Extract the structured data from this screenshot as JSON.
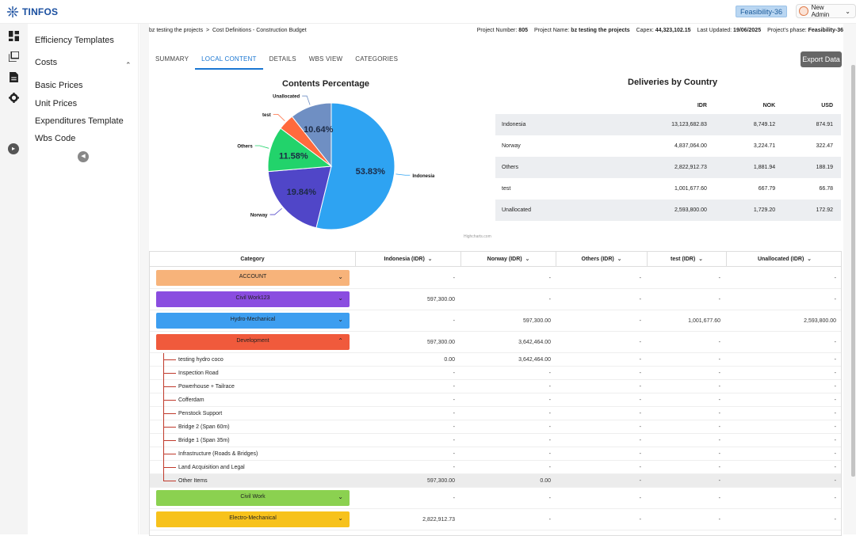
{
  "app": {
    "name": "TINFOS"
  },
  "header": {
    "phase_badge": "Feasibility-36",
    "user": "New Admin"
  },
  "sidemenu": {
    "items": [
      {
        "label": "Efficiency Templates"
      },
      {
        "label": "Costs"
      },
      {
        "label": "Basic Prices"
      },
      {
        "label": "Unit Prices"
      },
      {
        "label": "Expenditures Template"
      },
      {
        "label": "Wbs Code"
      }
    ]
  },
  "breadcrumb": {
    "project": "bz testing the projects",
    "sep": ">",
    "page": "Cost Definitions - Construction Budget"
  },
  "meta": {
    "project_number_label": "Project Number:",
    "project_number": "805",
    "project_name_label": "Project Name:",
    "project_name": "bz testing the projects",
    "capex_label": "Capex:",
    "capex": "44,323,102.15",
    "updated_label": "Last Updated:",
    "updated": "19/06/2025",
    "phase_label": "Project's phase:",
    "phase": "Feasibility-36"
  },
  "tabs": [
    "SUMMARY",
    "LOCAL CONTENT",
    "DETAILS",
    "WBS VIEW",
    "CATEGORIES"
  ],
  "export_label": "Export Data",
  "chart_data": {
    "type": "pie",
    "title": "Contents Percentage",
    "credit": "Highcharts.com",
    "slices": [
      {
        "name": "Indonesia",
        "value": 53.83,
        "label": "53.83%",
        "color": "#2ea3f2"
      },
      {
        "name": "Norway",
        "value": 19.84,
        "label": "19.84%",
        "color": "#5046c8"
      },
      {
        "name": "Others",
        "value": 11.58,
        "label": "11.58%",
        "color": "#22d36b"
      },
      {
        "name": "test",
        "value": 4.11,
        "label": "",
        "color": "#ff6a3d"
      },
      {
        "name": "Unallocated",
        "value": 10.64,
        "label": "10.64%",
        "color": "#6f8fc3"
      }
    ]
  },
  "deliveries": {
    "title": "Deliveries by Country",
    "columns": [
      "IDR",
      "NOK",
      "USD"
    ],
    "rows": [
      {
        "name": "Indonesia",
        "idr": "13,123,682.83",
        "nok": "8,749.12",
        "usd": "874.91"
      },
      {
        "name": "Norway",
        "idr": "4,837,064.00",
        "nok": "3,224.71",
        "usd": "322.47"
      },
      {
        "name": "Others",
        "idr": "2,822,912.73",
        "nok": "1,881.94",
        "usd": "188.19"
      },
      {
        "name": "test",
        "idr": "1,001,677.60",
        "nok": "667.79",
        "usd": "66.78"
      },
      {
        "name": "Unallocated",
        "idr": "2,593,800.00",
        "nok": "1,729.20",
        "usd": "172.92"
      }
    ]
  },
  "category_table": {
    "headers": [
      "Category",
      "Indonesia (IDR)",
      "Norway (IDR)",
      "Others (IDR)",
      "test (IDR)",
      "Unallocated (IDR)"
    ],
    "categories": [
      {
        "name": "ACCOUNT",
        "color": "#f7b37a",
        "expanded": false,
        "values": [
          "-",
          "-",
          "-",
          "-",
          "-"
        ]
      },
      {
        "name": "Civil Work123",
        "color": "#8a4de0",
        "expanded": false,
        "values": [
          "597,300.00",
          "-",
          "-",
          "-",
          "-"
        ]
      },
      {
        "name": "Hydro-Mechanical",
        "color": "#3d9ef0",
        "expanded": false,
        "values": [
          "-",
          "597,300.00",
          "-",
          "1,001,677.60",
          "2,593,800.00"
        ]
      },
      {
        "name": "Development",
        "color": "#f05a3c",
        "expanded": true,
        "values": [
          "597,300.00",
          "3,642,464.00",
          "-",
          "-",
          "-"
        ]
      },
      {
        "name": "Civil Work",
        "color": "#8bd150",
        "expanded": false,
        "values": [
          "-",
          "-",
          "-",
          "-",
          "-"
        ]
      },
      {
        "name": "Electro-Mechanical",
        "color": "#f7c21c",
        "expanded": false,
        "values": [
          "2,822,912.73",
          "-",
          "-",
          "-",
          "-"
        ]
      }
    ],
    "children": [
      {
        "name": "testing hydro coco",
        "values": [
          "0.00",
          "3,642,464.00",
          "-",
          "-",
          "-"
        ]
      },
      {
        "name": "Inspection Road",
        "values": [
          "-",
          "-",
          "-",
          "-",
          "-"
        ]
      },
      {
        "name": "Powerhouse + Tailrace",
        "values": [
          "-",
          "-",
          "-",
          "-",
          "-"
        ]
      },
      {
        "name": "Cofferdam",
        "values": [
          "-",
          "-",
          "-",
          "-",
          "-"
        ]
      },
      {
        "name": "Penstock Support",
        "values": [
          "-",
          "-",
          "-",
          "-",
          "-"
        ]
      },
      {
        "name": "Bridge 2 (Span 60m)",
        "values": [
          "-",
          "-",
          "-",
          "-",
          "-"
        ]
      },
      {
        "name": "Bridge 1 (Span 35m)",
        "values": [
          "-",
          "-",
          "-",
          "-",
          "-"
        ]
      },
      {
        "name": "Infrastructure (Roads & Bridges)",
        "values": [
          "-",
          "-",
          "-",
          "-",
          "-"
        ]
      },
      {
        "name": "Land Acquisition and Legal",
        "values": [
          "-",
          "-",
          "-",
          "-",
          "-"
        ]
      },
      {
        "name": "Other Items",
        "values": [
          "597,300.00",
          "0.00",
          "-",
          "-",
          "-"
        ]
      }
    ]
  }
}
